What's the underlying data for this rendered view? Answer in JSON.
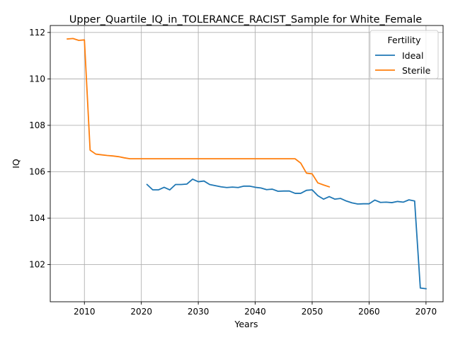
{
  "chart_data": {
    "type": "line",
    "title": "Upper_Quartile_IQ_in_TOLERANCE_RACIST_Sample for White_Female",
    "xlabel": "Years",
    "ylabel": "IQ",
    "xlim": [
      2004,
      2073
    ],
    "ylim": [
      100.4,
      112.3
    ],
    "xticks": [
      2010,
      2020,
      2030,
      2040,
      2050,
      2060,
      2070
    ],
    "yticks": [
      102,
      104,
      106,
      108,
      110,
      112
    ],
    "grid": true,
    "legend": {
      "title": "Fertility",
      "placement": "top-right"
    },
    "series": [
      {
        "name": "Ideal",
        "color": "#1f77b4",
        "x": [
          2021,
          2022,
          2023,
          2024,
          2025,
          2026,
          2027,
          2028,
          2029,
          2030,
          2031,
          2032,
          2033,
          2034,
          2035,
          2036,
          2037,
          2038,
          2039,
          2040,
          2041,
          2042,
          2043,
          2044,
          2045,
          2046,
          2047,
          2048,
          2049,
          2050,
          2051,
          2052,
          2053,
          2054,
          2055,
          2056,
          2057,
          2058,
          2059,
          2060,
          2061,
          2062,
          2063,
          2064,
          2065,
          2066,
          2067,
          2068,
          2069,
          2070
        ],
        "values": [
          105.45,
          105.22,
          105.22,
          105.33,
          105.22,
          105.45,
          105.45,
          105.47,
          105.68,
          105.57,
          105.6,
          105.45,
          105.4,
          105.35,
          105.32,
          105.34,
          105.32,
          105.38,
          105.38,
          105.33,
          105.3,
          105.23,
          105.25,
          105.16,
          105.17,
          105.17,
          105.07,
          105.07,
          105.2,
          105.22,
          104.97,
          104.82,
          104.93,
          104.82,
          104.85,
          104.74,
          104.66,
          104.61,
          104.62,
          104.62,
          104.78,
          104.68,
          104.69,
          104.67,
          104.72,
          104.69,
          104.79,
          104.74,
          100.99,
          100.96
        ]
      },
      {
        "name": "Sterile",
        "color": "#ff7f0e",
        "x": [
          2007,
          2008,
          2009,
          2010,
          2011,
          2012,
          2013,
          2014,
          2015,
          2016,
          2017,
          2018,
          2019,
          2020,
          2021,
          2022,
          2023,
          2024,
          2025,
          2026,
          2027,
          2028,
          2029,
          2030,
          2031,
          2032,
          2033,
          2034,
          2035,
          2036,
          2037,
          2038,
          2039,
          2040,
          2041,
          2042,
          2043,
          2044,
          2045,
          2046,
          2047,
          2048,
          2049,
          2050,
          2051,
          2052,
          2053
        ],
        "values": [
          111.72,
          111.74,
          111.66,
          111.68,
          106.93,
          106.76,
          106.73,
          106.7,
          106.68,
          106.65,
          106.6,
          106.56,
          106.56,
          106.56,
          106.56,
          106.56,
          106.56,
          106.56,
          106.56,
          106.56,
          106.56,
          106.56,
          106.56,
          106.56,
          106.56,
          106.56,
          106.56,
          106.56,
          106.56,
          106.56,
          106.56,
          106.56,
          106.56,
          106.56,
          106.56,
          106.56,
          106.56,
          106.56,
          106.56,
          106.56,
          106.56,
          106.37,
          105.94,
          105.91,
          105.52,
          105.43,
          105.35
        ]
      }
    ]
  }
}
